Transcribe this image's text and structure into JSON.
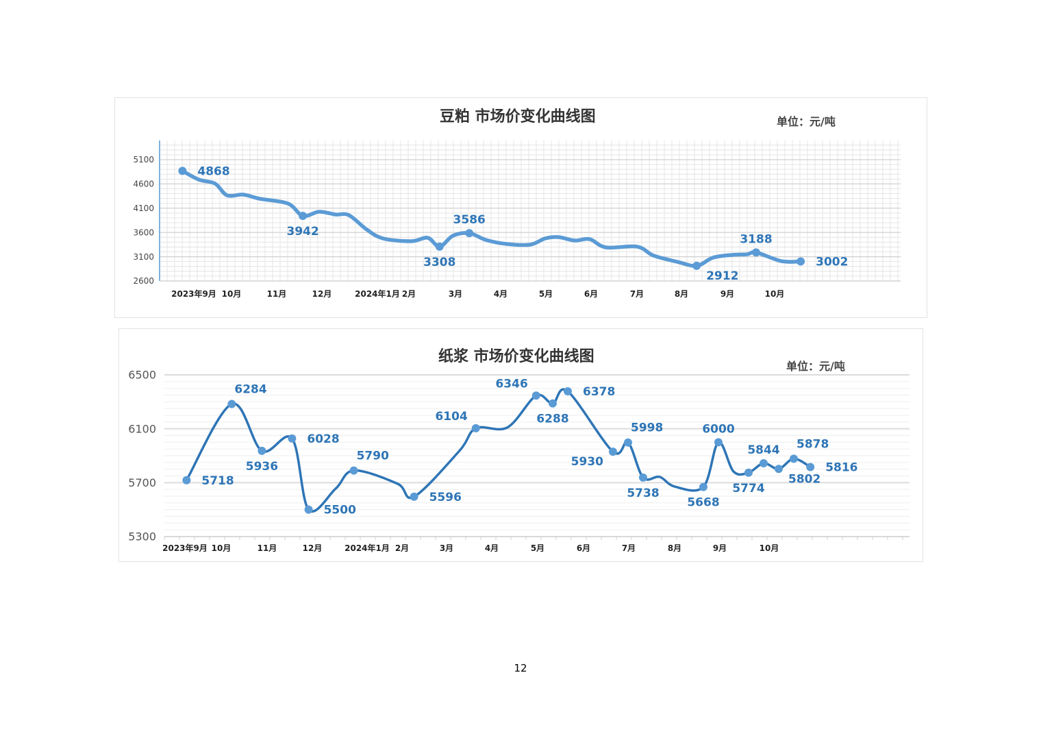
{
  "page_number": "12",
  "chart_data": [
    {
      "type": "line",
      "title": "豆粕 市场价变化曲线图",
      "unit": "单位：元/吨",
      "x_tick_labels": [
        "2023年9月",
        "10月",
        "11月",
        "12月",
        "2024年1月",
        "2月",
        "3月",
        "4月",
        "5月",
        "6月",
        "7月",
        "8月",
        "9月",
        "10月"
      ],
      "y_ticks": [
        2600,
        3100,
        3600,
        4100,
        4600,
        5100
      ],
      "ylim": [
        2600,
        5100
      ],
      "grid": true,
      "line_color": "#5b9bd5",
      "marker_color": "#5b9bd5",
      "label_color": "#2e75b6",
      "points": [
        {
          "x": "2023-08-29",
          "y": 4868,
          "label": true,
          "label_pos": "right"
        },
        {
          "x": "2023-09-09",
          "y": 4690
        },
        {
          "x": "2023-09-20",
          "y": 4606
        },
        {
          "x": "2023-09-28",
          "y": 4365
        },
        {
          "x": "2023-10-09",
          "y": 4380
        },
        {
          "x": "2023-10-20",
          "y": 4295
        },
        {
          "x": "2023-11-08",
          "y": 4196
        },
        {
          "x": "2023-11-18",
          "y": 3942,
          "label": true,
          "label_pos": "below"
        },
        {
          "x": "2023-11-29",
          "y": 4026
        },
        {
          "x": "2023-12-10",
          "y": 3970
        },
        {
          "x": "2023-12-19",
          "y": 3956
        },
        {
          "x": "2023-12-31",
          "y": 3660
        },
        {
          "x": "2024-01-11",
          "y": 3476
        },
        {
          "x": "2024-01-30",
          "y": 3420
        },
        {
          "x": "2024-02-10",
          "y": 3490
        },
        {
          "x": "2024-02-18",
          "y": 3308,
          "label": true,
          "label_pos": "below"
        },
        {
          "x": "2024-02-27",
          "y": 3532
        },
        {
          "x": "2024-03-09",
          "y": 3586,
          "label": true,
          "label_pos": "above"
        },
        {
          "x": "2024-03-20",
          "y": 3448
        },
        {
          "x": "2024-04-03",
          "y": 3363
        },
        {
          "x": "2024-04-19",
          "y": 3349
        },
        {
          "x": "2024-04-29",
          "y": 3476
        },
        {
          "x": "2024-05-08",
          "y": 3504
        },
        {
          "x": "2024-05-19",
          "y": 3434
        },
        {
          "x": "2024-05-29",
          "y": 3462
        },
        {
          "x": "2024-06-09",
          "y": 3292
        },
        {
          "x": "2024-06-30",
          "y": 3307
        },
        {
          "x": "2024-07-11",
          "y": 3123
        },
        {
          "x": "2024-07-27",
          "y": 2995
        },
        {
          "x": "2024-08-09",
          "y": 2912,
          "label": true,
          "label_pos": "below-right"
        },
        {
          "x": "2024-08-20",
          "y": 3080
        },
        {
          "x": "2024-09-02",
          "y": 3137
        },
        {
          "x": "2024-09-12",
          "y": 3150
        },
        {
          "x": "2024-09-18",
          "y": 3188,
          "label": true,
          "label_pos": "above"
        },
        {
          "x": "2024-10-05",
          "y": 3009
        },
        {
          "x": "2024-10-18",
          "y": 3002,
          "label": true,
          "label_pos": "right"
        }
      ]
    },
    {
      "type": "line",
      "title": "纸浆 市场价变化曲线图",
      "unit": "单位：元/吨",
      "x_tick_labels": [
        "2023年9月",
        "10月",
        "11月",
        "12月",
        "2024年1月",
        "2月",
        "3月",
        "4月",
        "5月",
        "6月",
        "7月",
        "8月",
        "9月",
        "10月"
      ],
      "y_ticks": [
        5300,
        5700,
        6100,
        6500
      ],
      "ylim": [
        5300,
        6500
      ],
      "grid": true,
      "line_color": "#2e75b6",
      "marker_color": "#5b9bd5",
      "label_color": "#2e75b6",
      "points": [
        {
          "x": "2023-09-08",
          "y": 5718,
          "label": true,
          "label_pos": "right"
        },
        {
          "x": "2023-10-08",
          "y": 6284,
          "label": true,
          "label_pos": "above-right"
        },
        {
          "x": "2023-10-28",
          "y": 5936,
          "label": true,
          "label_pos": "below"
        },
        {
          "x": "2023-11-17",
          "y": 6028,
          "label": true,
          "label_pos": "right"
        },
        {
          "x": "2023-11-28",
          "y": 5500,
          "label": true,
          "label_pos": "right"
        },
        {
          "x": "2023-12-16",
          "y": 5656
        },
        {
          "x": "2023-12-28",
          "y": 5790,
          "label": true,
          "label_pos": "above-right"
        },
        {
          "x": "2024-01-26",
          "y": 5692
        },
        {
          "x": "2024-02-06",
          "y": 5596,
          "label": true,
          "label_pos": "right"
        },
        {
          "x": "2024-03-07",
          "y": 5935
        },
        {
          "x": "2024-03-18",
          "y": 6104,
          "label": true,
          "label_pos": "above-left"
        },
        {
          "x": "2024-04-08",
          "y": 6110
        },
        {
          "x": "2024-04-27",
          "y": 6346,
          "label": true,
          "label_pos": "above-left"
        },
        {
          "x": "2024-05-08",
          "y": 6288,
          "label": true,
          "label_pos": "below"
        },
        {
          "x": "2024-05-18",
          "y": 6378,
          "label": true,
          "label_pos": "right"
        },
        {
          "x": "2024-06-17",
          "y": 5930,
          "label": true,
          "label_pos": "below-left"
        },
        {
          "x": "2024-06-27",
          "y": 5998,
          "label": true,
          "label_pos": "above-right"
        },
        {
          "x": "2024-07-07",
          "y": 5738,
          "label": true,
          "label_pos": "below"
        },
        {
          "x": "2024-07-18",
          "y": 5743
        },
        {
          "x": "2024-07-28",
          "y": 5671
        },
        {
          "x": "2024-08-16",
          "y": 5668,
          "label": true,
          "label_pos": "below"
        },
        {
          "x": "2024-08-26",
          "y": 6000,
          "label": true,
          "label_pos": "above"
        },
        {
          "x": "2024-09-05",
          "y": 5783
        },
        {
          "x": "2024-09-15",
          "y": 5774,
          "label": true,
          "label_pos": "below"
        },
        {
          "x": "2024-09-25",
          "y": 5844,
          "label": true,
          "label_pos": "above"
        },
        {
          "x": "2024-10-05",
          "y": 5802,
          "label": true,
          "label_pos": "below-right"
        },
        {
          "x": "2024-10-15",
          "y": 5878,
          "label": true,
          "label_pos": "above-right"
        },
        {
          "x": "2024-10-26",
          "y": 5816,
          "label": true,
          "label_pos": "right"
        }
      ]
    }
  ]
}
